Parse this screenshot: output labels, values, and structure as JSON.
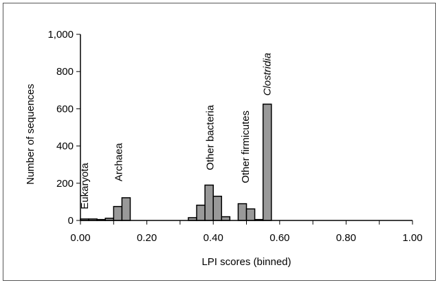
{
  "chart_data": {
    "type": "bar",
    "xlabel": "LPI scores (binned)",
    "ylabel": "Number of sequences",
    "xlim": [
      0,
      1
    ],
    "ylim": [
      0,
      1000
    ],
    "xticks": [
      "0.00",
      "0.20",
      "0.40",
      "0.60",
      "0.80",
      "1.00"
    ],
    "yticks": [
      "0",
      "200",
      "400",
      "600",
      "800",
      "1,000"
    ],
    "bin_width": 0.025,
    "x": [
      0.0,
      0.025,
      0.05,
      0.075,
      0.1,
      0.125,
      0.325,
      0.35,
      0.375,
      0.4,
      0.425,
      0.475,
      0.5,
      0.525,
      0.55
    ],
    "values": [
      8,
      8,
      5,
      12,
      75,
      122,
      15,
      82,
      190,
      130,
      20,
      90,
      62,
      5,
      625
    ],
    "grid": false,
    "annotations": [
      {
        "text": "Eukaryota",
        "x": 0.012,
        "y": 60,
        "italic": false
      },
      {
        "text": "Archaea",
        "x": 0.115,
        "y": 210,
        "italic": false
      },
      {
        "text": "Other bacteria",
        "x": 0.39,
        "y": 270,
        "italic": false
      },
      {
        "text": "Other firmicutes",
        "x": 0.497,
        "y": 200,
        "italic": false
      },
      {
        "text": "Clostridia",
        "x": 0.562,
        "y": 670,
        "italic": true
      }
    ],
    "colors": {
      "bar_fill": "#999999",
      "bar_stroke": "#000000"
    }
  }
}
